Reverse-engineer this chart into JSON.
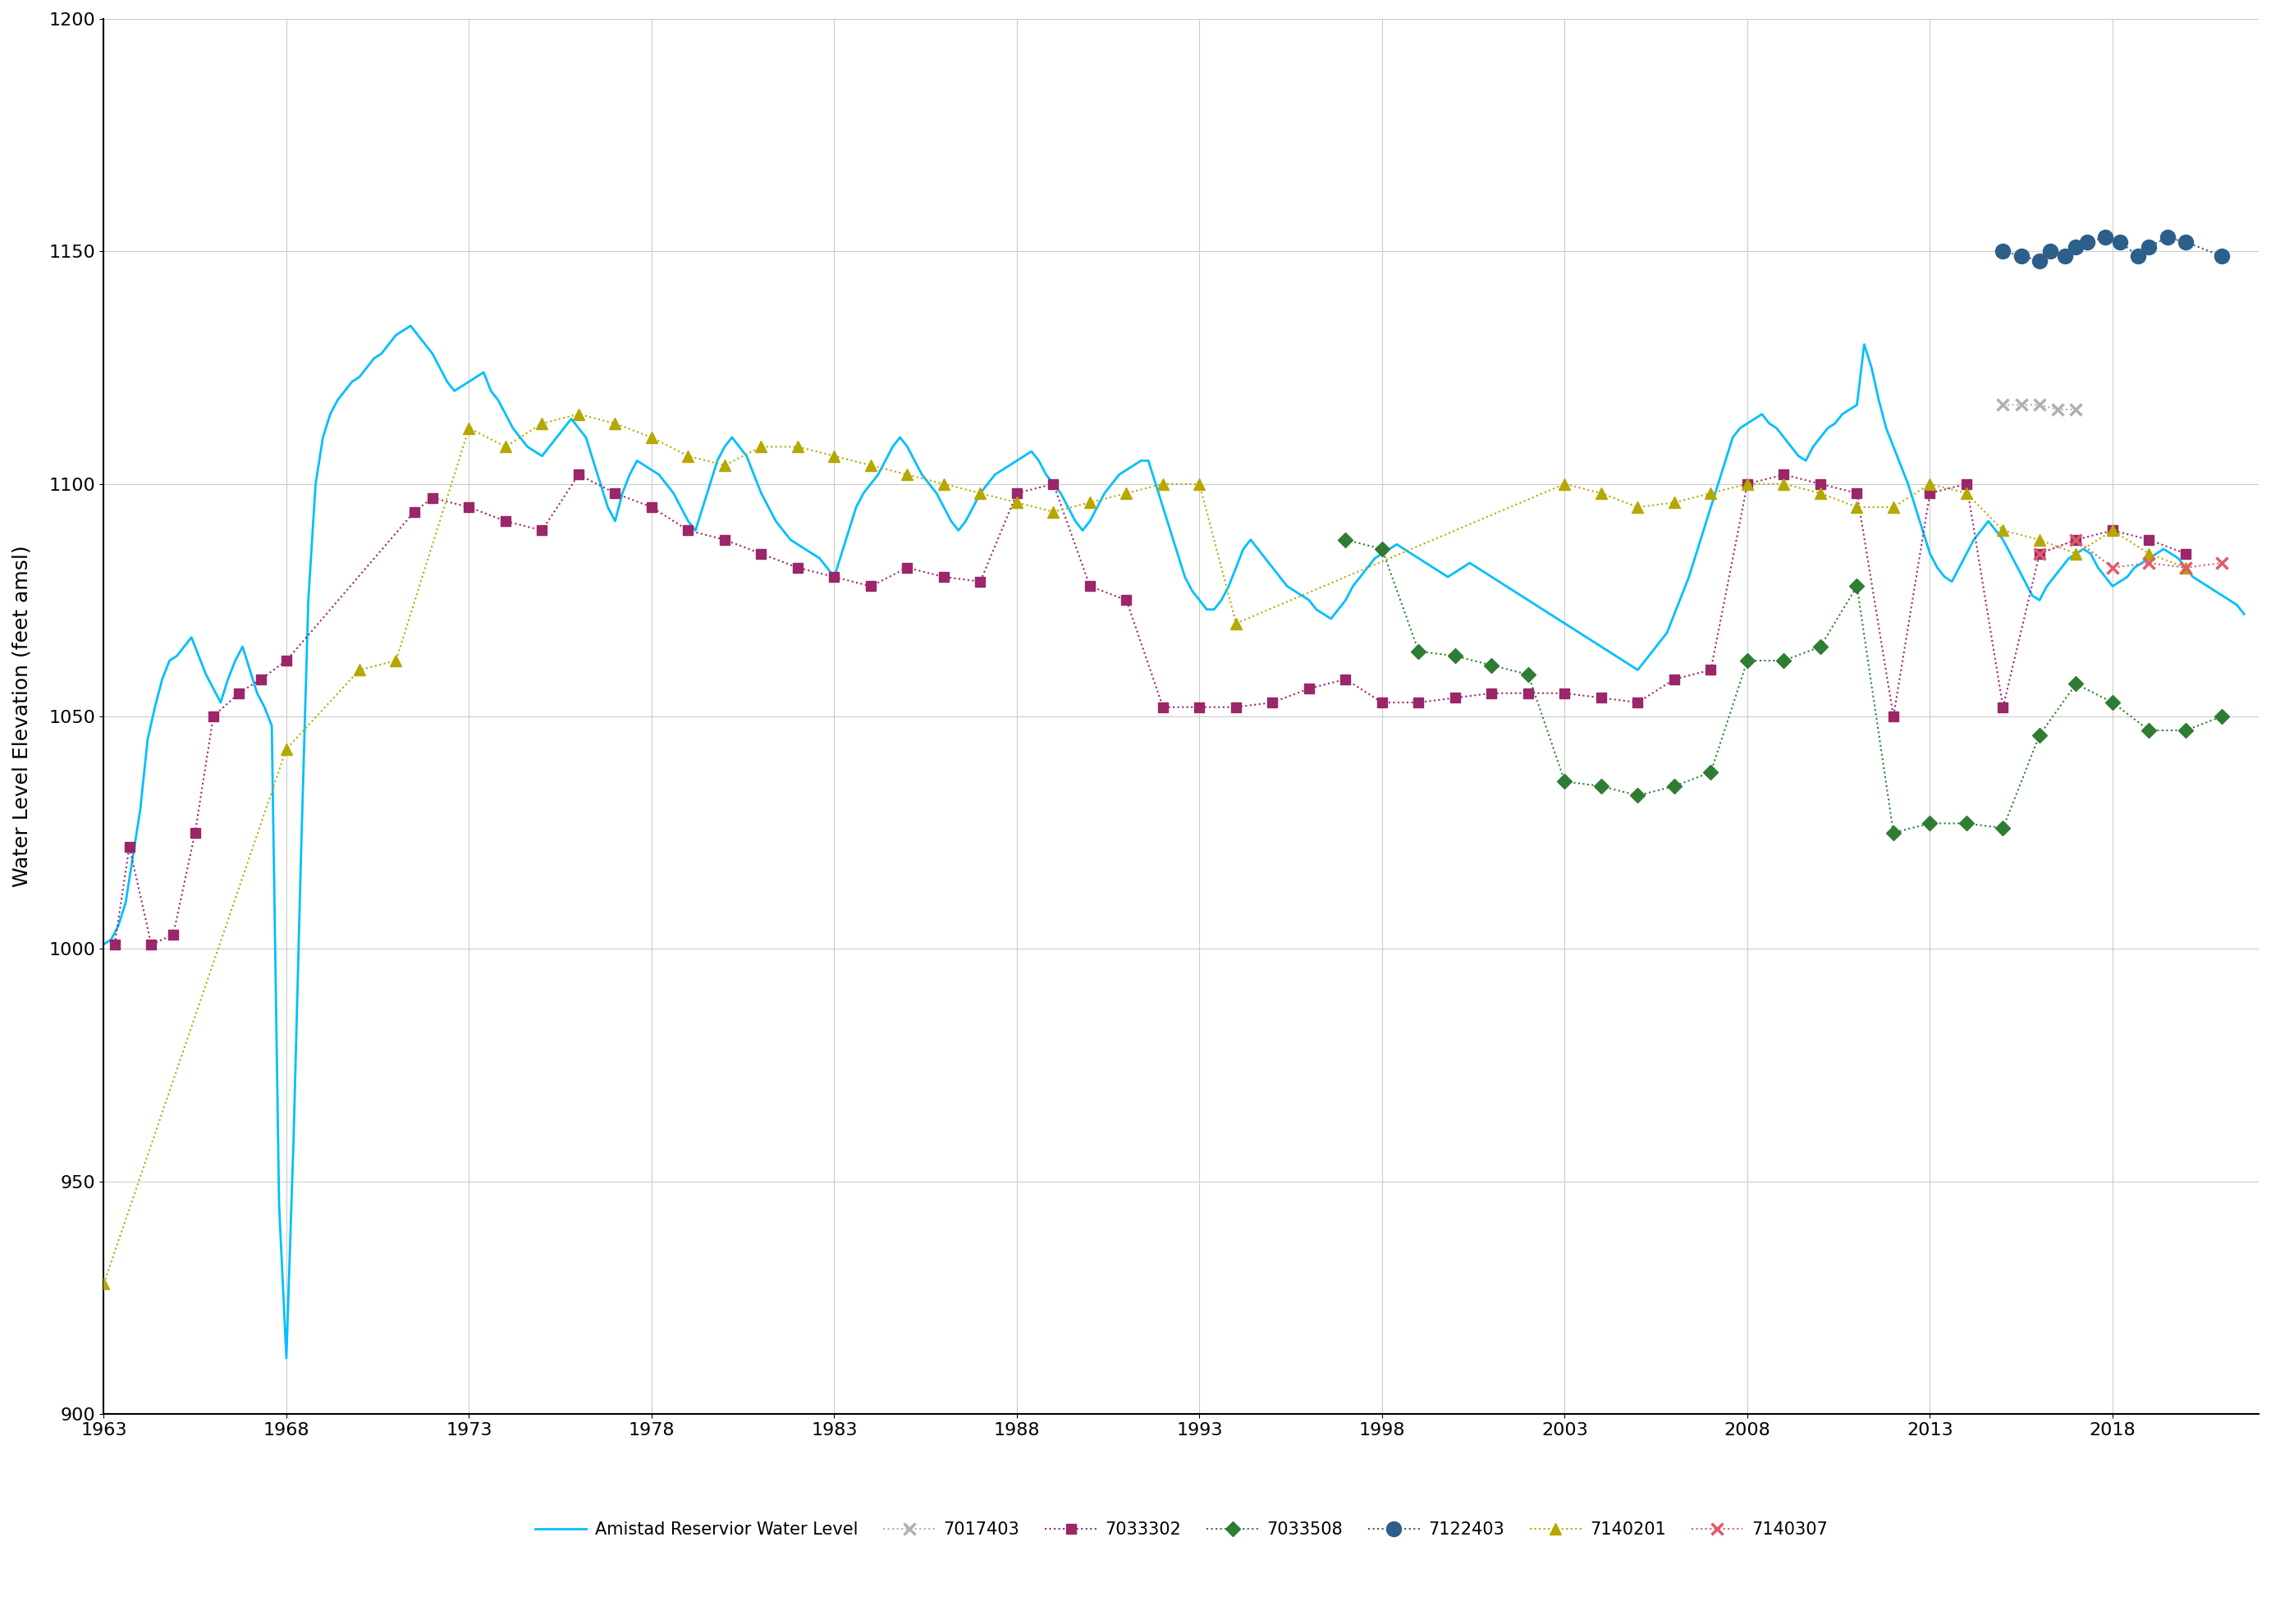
{
  "title": "",
  "ylabel": "Water Level Elevation (feet amsl)",
  "xlabel": "",
  "xlim": [
    1963,
    2022
  ],
  "ylim": [
    900,
    1200
  ],
  "yticks": [
    900,
    950,
    1000,
    1050,
    1100,
    1150,
    1200
  ],
  "xticks": [
    1963,
    1968,
    1973,
    1978,
    1983,
    1988,
    1993,
    1998,
    2003,
    2008,
    2013,
    2018
  ],
  "reservoir_color": "#00bfff",
  "w7017403_color": "#b0b0b0",
  "w7033302_color": "#9b2669",
  "w7033508_color": "#2e7d32",
  "w7122403_color": "#2c5f8a",
  "w7140201_color": "#b5a800",
  "w7140307_color": "#e05a6a",
  "reservoir": {
    "x": [
      1963.0,
      1963.2,
      1963.4,
      1963.6,
      1963.8,
      1964.0,
      1964.2,
      1964.4,
      1964.6,
      1964.8,
      1965.0,
      1965.2,
      1965.4,
      1965.6,
      1965.8,
      1966.0,
      1966.2,
      1966.4,
      1966.6,
      1966.8,
      1967.0,
      1967.2,
      1967.4,
      1967.6,
      1967.8,
      1968.0,
      1968.2,
      1968.4,
      1968.6,
      1968.8,
      1969.0,
      1969.2,
      1969.4,
      1969.6,
      1969.8,
      1970.0,
      1970.2,
      1970.4,
      1970.6,
      1970.8,
      1971.0,
      1971.2,
      1971.4,
      1971.6,
      1971.8,
      1972.0,
      1972.2,
      1972.4,
      1972.6,
      1972.8,
      1973.0,
      1973.2,
      1973.4,
      1973.6,
      1973.8,
      1974.0,
      1974.2,
      1974.4,
      1974.6,
      1974.8,
      1975.0,
      1975.2,
      1975.4,
      1975.6,
      1975.8,
      1976.0,
      1976.2,
      1976.4,
      1976.6,
      1976.8,
      1977.0,
      1977.2,
      1977.4,
      1977.6,
      1977.8,
      1978.0,
      1978.2,
      1978.4,
      1978.6,
      1978.8,
      1979.0,
      1979.2,
      1979.4,
      1979.6,
      1979.8,
      1980.0,
      1980.2,
      1980.4,
      1980.6,
      1980.8,
      1981.0,
      1981.2,
      1981.4,
      1981.6,
      1981.8,
      1982.0,
      1982.2,
      1982.4,
      1982.6,
      1982.8,
      1983.0,
      1983.2,
      1983.4,
      1983.6,
      1983.8,
      1984.0,
      1984.2,
      1984.4,
      1984.6,
      1984.8,
      1985.0,
      1985.2,
      1985.4,
      1985.6,
      1985.8,
      1986.0,
      1986.2,
      1986.4,
      1986.6,
      1986.8,
      1987.0,
      1987.2,
      1987.4,
      1987.6,
      1987.8,
      1988.0,
      1988.2,
      1988.4,
      1988.6,
      1988.8,
      1989.0,
      1989.2,
      1989.4,
      1989.6,
      1989.8,
      1990.0,
      1990.2,
      1990.4,
      1990.6,
      1990.8,
      1991.0,
      1991.2,
      1991.4,
      1991.6,
      1991.8,
      1992.0,
      1992.2,
      1992.4,
      1992.6,
      1992.8,
      1993.0,
      1993.2,
      1993.4,
      1993.6,
      1993.8,
      1994.0,
      1994.2,
      1994.4,
      1994.6,
      1994.8,
      1995.0,
      1995.2,
      1995.4,
      1995.6,
      1995.8,
      1996.0,
      1996.2,
      1996.4,
      1996.6,
      1996.8,
      1997.0,
      1997.2,
      1997.4,
      1997.6,
      1997.8,
      1998.0,
      1998.2,
      1998.4,
      1998.6,
      1998.8,
      1999.0,
      1999.2,
      1999.4,
      1999.6,
      1999.8,
      2000.0,
      2000.2,
      2000.4,
      2000.6,
      2000.8,
      2001.0,
      2001.2,
      2001.4,
      2001.6,
      2001.8,
      2002.0,
      2002.2,
      2002.4,
      2002.6,
      2002.8,
      2003.0,
      2003.2,
      2003.4,
      2003.6,
      2003.8,
      2004.0,
      2004.2,
      2004.4,
      2004.6,
      2004.8,
      2005.0,
      2005.2,
      2005.4,
      2005.6,
      2005.8,
      2006.0,
      2006.2,
      2006.4,
      2006.6,
      2006.8,
      2007.0,
      2007.2,
      2007.4,
      2007.6,
      2007.8,
      2008.0,
      2008.2,
      2008.4,
      2008.6,
      2008.8,
      2009.0,
      2009.2,
      2009.4,
      2009.6,
      2009.8,
      2010.0,
      2010.2,
      2010.4,
      2010.6,
      2010.8,
      2011.0,
      2011.2,
      2011.4,
      2011.6,
      2011.8,
      2012.0,
      2012.2,
      2012.4,
      2012.6,
      2012.8,
      2013.0,
      2013.2,
      2013.4,
      2013.6,
      2013.8,
      2014.0,
      2014.2,
      2014.4,
      2014.6,
      2014.8,
      2015.0,
      2015.2,
      2015.4,
      2015.6,
      2015.8,
      2016.0,
      2016.2,
      2016.4,
      2016.6,
      2016.8,
      2017.0,
      2017.2,
      2017.4,
      2017.6,
      2017.8,
      2018.0,
      2018.2,
      2018.4,
      2018.6,
      2018.8,
      2019.0,
      2019.2,
      2019.4,
      2019.6,
      2019.8,
      2020.0,
      2020.2,
      2020.4,
      2020.6,
      2020.8,
      2021.0,
      2021.2,
      2021.4,
      2021.6
    ],
    "y": [
      1001,
      1002,
      1005,
      1010,
      1020,
      1030,
      1045,
      1052,
      1058,
      1062,
      1063,
      1065,
      1067,
      1063,
      1059,
      1056,
      1053,
      1058,
      1062,
      1065,
      1060,
      1055,
      1052,
      1048,
      945,
      912,
      960,
      1020,
      1075,
      1100,
      1110,
      1115,
      1118,
      1120,
      1122,
      1123,
      1125,
      1127,
      1128,
      1130,
      1132,
      1133,
      1134,
      1132,
      1130,
      1128,
      1125,
      1122,
      1120,
      1121,
      1122,
      1123,
      1124,
      1120,
      1118,
      1115,
      1112,
      1110,
      1108,
      1107,
      1106,
      1108,
      1110,
      1112,
      1114,
      1112,
      1110,
      1105,
      1100,
      1095,
      1092,
      1098,
      1102,
      1105,
      1104,
      1103,
      1102,
      1100,
      1098,
      1095,
      1092,
      1090,
      1095,
      1100,
      1105,
      1108,
      1110,
      1108,
      1106,
      1102,
      1098,
      1095,
      1092,
      1090,
      1088,
      1087,
      1086,
      1085,
      1084,
      1082,
      1080,
      1085,
      1090,
      1095,
      1098,
      1100,
      1102,
      1105,
      1108,
      1110,
      1108,
      1105,
      1102,
      1100,
      1098,
      1095,
      1092,
      1090,
      1092,
      1095,
      1098,
      1100,
      1102,
      1103,
      1104,
      1105,
      1106,
      1107,
      1105,
      1102,
      1100,
      1098,
      1095,
      1092,
      1090,
      1092,
      1095,
      1098,
      1100,
      1102,
      1103,
      1104,
      1105,
      1105,
      1100,
      1095,
      1090,
      1085,
      1080,
      1077,
      1075,
      1073,
      1073,
      1075,
      1078,
      1082,
      1086,
      1088,
      1086,
      1084,
      1082,
      1080,
      1078,
      1077,
      1076,
      1075,
      1073,
      1072,
      1071,
      1073,
      1075,
      1078,
      1080,
      1082,
      1084,
      1085,
      1086,
      1087,
      1086,
      1085,
      1084,
      1083,
      1082,
      1081,
      1080,
      1081,
      1082,
      1083,
      1082,
      1081,
      1080,
      1079,
      1078,
      1077,
      1076,
      1075,
      1074,
      1073,
      1072,
      1071,
      1070,
      1069,
      1068,
      1067,
      1066,
      1065,
      1064,
      1063,
      1062,
      1061,
      1060,
      1062,
      1064,
      1066,
      1068,
      1072,
      1076,
      1080,
      1085,
      1090,
      1095,
      1100,
      1105,
      1110,
      1112,
      1113,
      1114,
      1115,
      1113,
      1112,
      1110,
      1108,
      1106,
      1105,
      1108,
      1110,
      1112,
      1113,
      1115,
      1116,
      1117,
      1130,
      1125,
      1118,
      1112,
      1108,
      1104,
      1100,
      1095,
      1090,
      1085,
      1082,
      1080,
      1079,
      1082,
      1085,
      1088,
      1090,
      1092,
      1090,
      1088,
      1085,
      1082,
      1079,
      1076,
      1075,
      1078,
      1080,
      1082,
      1084,
      1085,
      1086,
      1085,
      1082,
      1080,
      1078,
      1079,
      1080,
      1082,
      1083,
      1084,
      1085,
      1086,
      1085,
      1084,
      1082,
      1080,
      1079,
      1078,
      1077,
      1076,
      1075,
      1074,
      1072
    ]
  },
  "w7033302": {
    "x": [
      1963.3,
      1963.7,
      1964.3,
      1964.9,
      1965.5,
      1966.0,
      1966.7,
      1967.3,
      1968.0,
      1971.5,
      1972.0,
      1973.0,
      1974.0,
      1975.0,
      1976.0,
      1977.0,
      1978.0,
      1979.0,
      1980.0,
      1981.0,
      1982.0,
      1983.0,
      1984.0,
      1985.0,
      1986.0,
      1987.0,
      1988.0,
      1989.0,
      1990.0,
      1991.0,
      1992.0,
      1993.0,
      1994.0,
      1995.0,
      1996.0,
      1997.0,
      1998.0,
      1999.0,
      2000.0,
      2001.0,
      2002.0,
      2003.0,
      2004.0,
      2005.0,
      2006.0,
      2007.0,
      2008.0,
      2009.0,
      2010.0,
      2011.0,
      2012.0,
      2013.0,
      2014.0,
      2015.0,
      2016.0,
      2017.0,
      2018.0,
      2019.0,
      2020.0
    ],
    "y": [
      1001,
      1022,
      1001,
      1003,
      1025,
      1050,
      1055,
      1058,
      1062,
      1094,
      1097,
      1095,
      1092,
      1090,
      1102,
      1098,
      1095,
      1090,
      1088,
      1085,
      1082,
      1080,
      1078,
      1082,
      1080,
      1079,
      1098,
      1100,
      1078,
      1075,
      1052,
      1052,
      1052,
      1053,
      1056,
      1058,
      1053,
      1053,
      1054,
      1055,
      1055,
      1055,
      1054,
      1053,
      1058,
      1060,
      1100,
      1102,
      1100,
      1098,
      1050,
      1098,
      1100,
      1052,
      1085,
      1088,
      1090,
      1088,
      1085
    ]
  },
  "w7033508": {
    "x": [
      1997.0,
      1998.0,
      1999.0,
      2000.0,
      2001.0,
      2002.0,
      2003.0,
      2004.0,
      2005.0,
      2006.0,
      2007.0,
      2008.0,
      2009.0,
      2010.0,
      2011.0,
      2012.0,
      2013.0,
      2014.0,
      2015.0,
      2016.0,
      2017.0,
      2018.0,
      2019.0,
      2020.0,
      2021.0
    ],
    "y": [
      1088,
      1086,
      1064,
      1063,
      1061,
      1059,
      1036,
      1035,
      1033,
      1035,
      1038,
      1062,
      1062,
      1065,
      1078,
      1025,
      1027,
      1027,
      1026,
      1046,
      1057,
      1053,
      1047,
      1047,
      1050
    ]
  },
  "w7122403": {
    "x": [
      2015.0,
      2015.5,
      2016.0,
      2016.3,
      2016.7,
      2017.0,
      2017.3,
      2017.8,
      2018.2,
      2018.7,
      2019.0,
      2019.5,
      2020.0,
      2021.0
    ],
    "y": [
      1150,
      1149,
      1148,
      1150,
      1149,
      1151,
      1152,
      1153,
      1152,
      1149,
      1151,
      1153,
      1152,
      1149
    ]
  },
  "w7140201": {
    "x": [
      1963.0,
      1968.0,
      1970.0,
      1971.0,
      1973.0,
      1974.0,
      1975.0,
      1976.0,
      1977.0,
      1978.0,
      1979.0,
      1980.0,
      1981.0,
      1982.0,
      1983.0,
      1984.0,
      1985.0,
      1986.0,
      1987.0,
      1988.0,
      1989.0,
      1990.0,
      1991.0,
      1992.0,
      1993.0,
      1994.0,
      2003.0,
      2004.0,
      2005.0,
      2006.0,
      2007.0,
      2008.0,
      2009.0,
      2010.0,
      2011.0,
      2012.0,
      2013.0,
      2014.0,
      2015.0,
      2016.0,
      2017.0,
      2018.0,
      2019.0,
      2020.0
    ],
    "y": [
      928,
      1043,
      1060,
      1062,
      1112,
      1108,
      1113,
      1115,
      1113,
      1110,
      1106,
      1104,
      1108,
      1108,
      1106,
      1104,
      1102,
      1100,
      1098,
      1096,
      1094,
      1096,
      1098,
      1100,
      1100,
      1070,
      1100,
      1098,
      1095,
      1096,
      1098,
      1100,
      1100,
      1098,
      1095,
      1095,
      1100,
      1098,
      1090,
      1088,
      1085,
      1090,
      1085,
      1082
    ]
  },
  "w7017403": {
    "x": [
      2015.0,
      2015.5,
      2016.0,
      2016.5,
      2017.0
    ],
    "y": [
      1117,
      1117,
      1117,
      1116,
      1116
    ]
  },
  "w7140307": {
    "x": [
      2016.0,
      2017.0,
      2018.0,
      2019.0,
      2020.0,
      2021.0
    ],
    "y": [
      1085,
      1088,
      1082,
      1083,
      1082,
      1083
    ]
  },
  "legend_labels": [
    "Amistad Reservior Water Level",
    "7017403",
    "7033302",
    "7033508",
    "7122403",
    "7140201",
    "7140307"
  ],
  "bg_color": "#ffffff",
  "grid_color": "#cccccc"
}
